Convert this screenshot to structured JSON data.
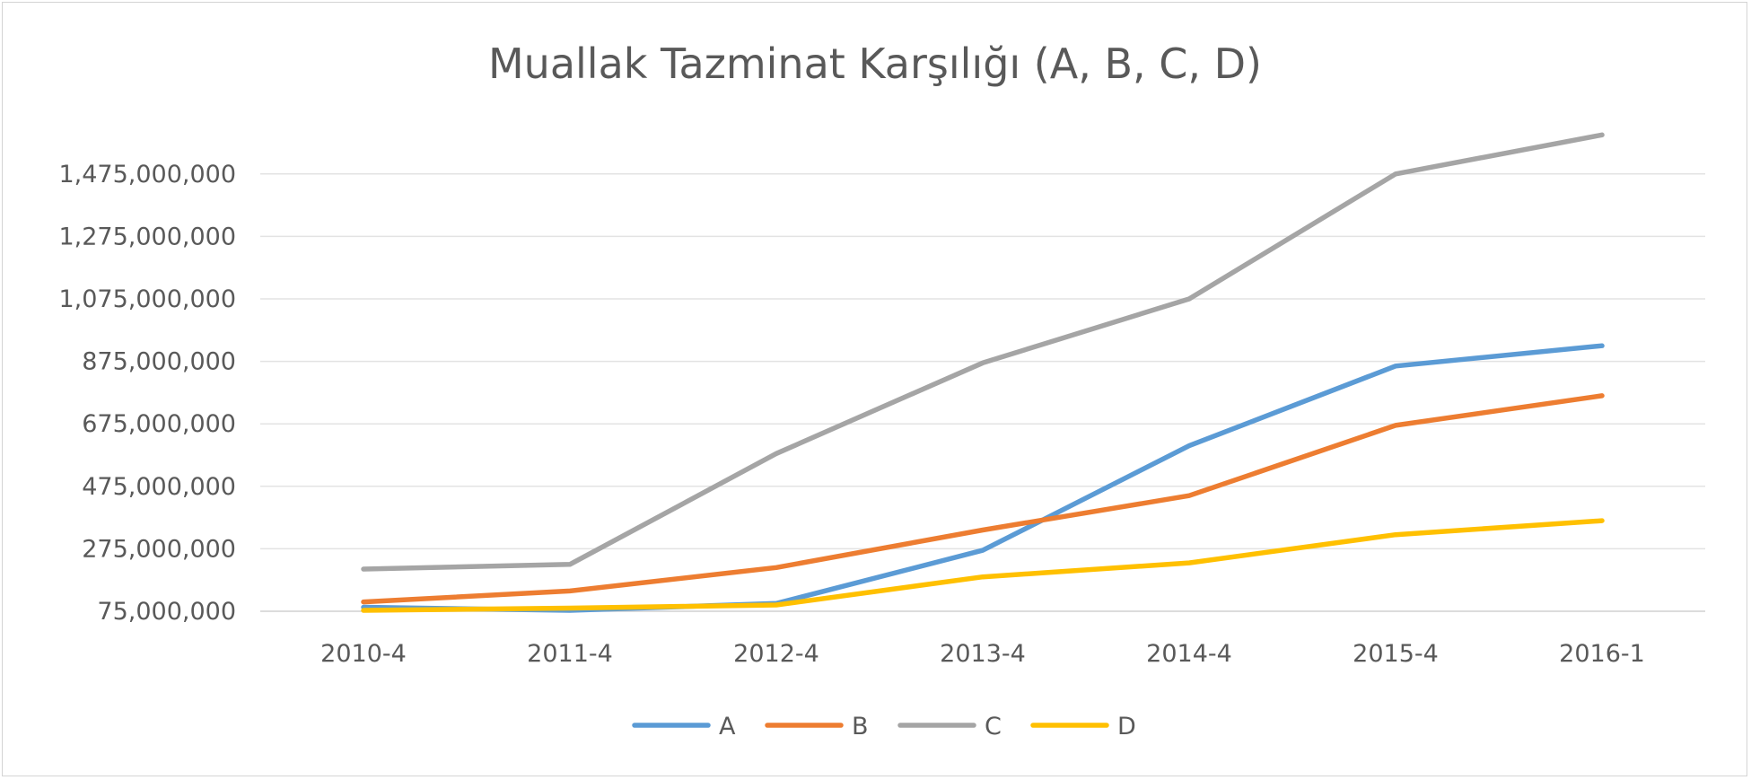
{
  "chart_data": {
    "type": "line",
    "title": "Muallak Tazminat Karşılığı (A, B, C, D)",
    "xlabel": "",
    "ylabel": "",
    "categories": [
      "2010-4",
      "2011-4",
      "2012-4",
      "2013-4",
      "2014-4",
      "2015-4",
      "2016-1"
    ],
    "y_ticks": [
      "75,000,000",
      "275,000,000",
      "475,000,000",
      "675,000,000",
      "875,000,000",
      "1,075,000,000",
      "1,275,000,000",
      "1,475,000,000"
    ],
    "y_tick_values": [
      75000000,
      275000000,
      475000000,
      675000000,
      875000000,
      1075000000,
      1275000000,
      1475000000
    ],
    "ylim": [
      75000000,
      1600000000
    ],
    "grid": true,
    "legend_position": "bottom",
    "series": [
      {
        "name": "A",
        "color": "#5B9BD5",
        "values": [
          88000000,
          78000000,
          100000000,
          270000000,
          605000000,
          860000000,
          925000000
        ]
      },
      {
        "name": "B",
        "color": "#ED7D31",
        "values": [
          105000000,
          140000000,
          215000000,
          335000000,
          445000000,
          670000000,
          765000000
        ]
      },
      {
        "name": "C",
        "color": "#A5A5A5",
        "values": [
          210000000,
          225000000,
          580000000,
          870000000,
          1075000000,
          1475000000,
          1600000000
        ]
      },
      {
        "name": "D",
        "color": "#FFC000",
        "values": [
          78000000,
          85000000,
          95000000,
          185000000,
          230000000,
          320000000,
          365000000
        ]
      }
    ]
  }
}
